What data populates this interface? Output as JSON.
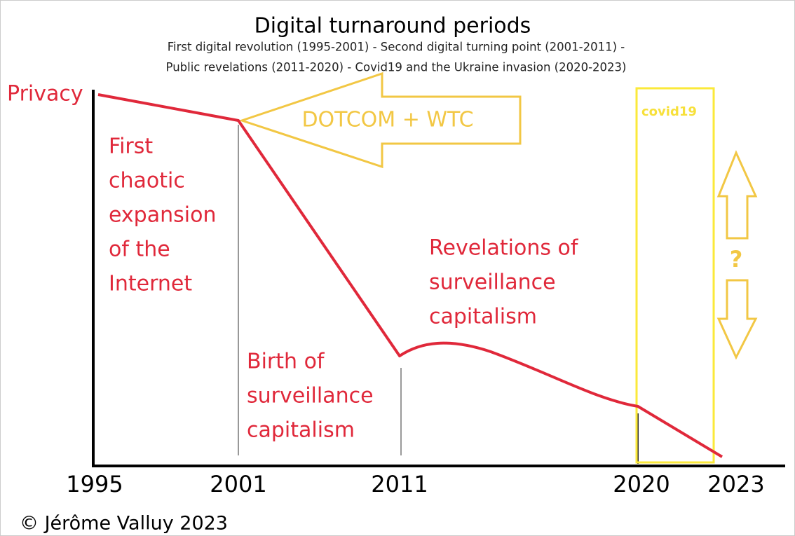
{
  "title": "Digital turnaround periods",
  "subtitle": [
    "First digital revolution (1995-2001) - Second digital turning point (2001-2011) -",
    "Public revelations (2011-2020) - Covid19 and the Ukraine invasion (2020-2023)"
  ],
  "axis_label": "Privacy",
  "years": [
    "1995",
    "2001",
    "2011",
    "2020",
    "2023"
  ],
  "periods": [
    {
      "lines": [
        "First",
        "chaotic",
        "expansion",
        "of the",
        "Internet"
      ]
    },
    {
      "lines": [
        "Birth of",
        "surveillance",
        "capitalism"
      ]
    },
    {
      "lines": [
        "Revelations of",
        "surveillance",
        "capitalism"
      ]
    }
  ],
  "event": "DOTCOM + WTC",
  "box_label": "covid19",
  "question": "?",
  "copyright": "© Jérôme Valluy 2023"
}
